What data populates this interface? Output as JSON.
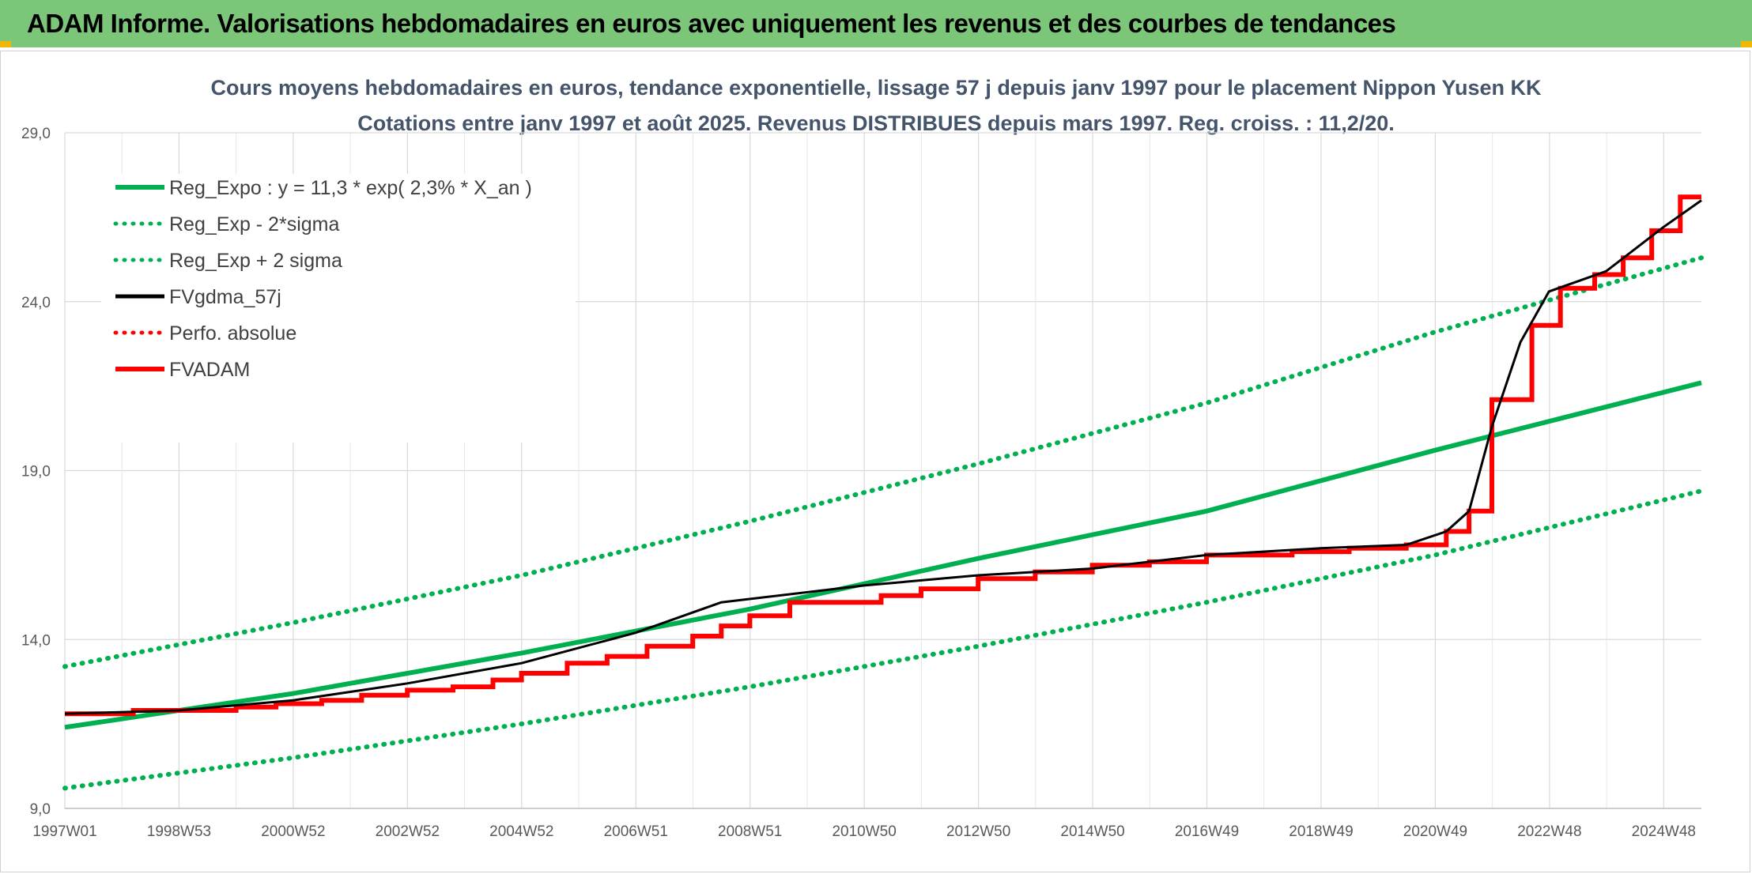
{
  "banner": {
    "title": "ADAM Informe. Valorisations hebdomadaires en euros avec uniquement les revenus et des courbes de tendances"
  },
  "colors": {
    "banner_bg": "#7cc67a",
    "regression": "#00b050",
    "fvgdma": "#000000",
    "fvadam": "#ff0000",
    "perfo": "#ff0000",
    "title": "#44546a"
  },
  "chart_data": {
    "type": "line",
    "title": [
      "Cours moyens hebdomadaires en euros, tendance exponentielle, lissage 57 j depuis janv 1997 pour le placement Nippon Yusen KK",
      "Cotations entre janv 1997 et août 2025. Revenus DISTRIBUES depuis mars 1997. Reg. croiss. : 11,2/20."
    ],
    "xlabel": "",
    "ylabel": "",
    "x_ticks": [
      "1997W01",
      "1998W53",
      "2000W52",
      "2002W52",
      "2004W52",
      "2006W51",
      "2008W51",
      "2010W50",
      "2012W50",
      "2014W50",
      "2016W49",
      "2018W49",
      "2020W49",
      "2022W48",
      "2024W48"
    ],
    "x_range": [
      1997.0,
      2025.67
    ],
    "y_ticks": [
      "9,0",
      "14,0",
      "19,0",
      "24,0",
      "29,0"
    ],
    "ylim": [
      9.0,
      29.0
    ],
    "grid": true,
    "legend_position": "top-left",
    "series": [
      {
        "name": "Reg_Expo : y = 11,3 * exp( 2,3% *  X_an )",
        "style": "solid",
        "color": "#00b050",
        "points": [
          [
            1997.0,
            11.4
          ],
          [
            2001.0,
            12.4
          ],
          [
            2005.0,
            13.6
          ],
          [
            2009.0,
            14.9
          ],
          [
            2013.0,
            16.4
          ],
          [
            2017.0,
            17.8
          ],
          [
            2021.0,
            19.6
          ],
          [
            2025.67,
            21.6
          ]
        ]
      },
      {
        "name": "Reg_Exp - 2*sigma",
        "style": "dotted",
        "color": "#00b050",
        "points": [
          [
            1997.0,
            9.6
          ],
          [
            2001.0,
            10.5
          ],
          [
            2005.0,
            11.5
          ],
          [
            2009.0,
            12.6
          ],
          [
            2013.0,
            13.8
          ],
          [
            2017.0,
            15.1
          ],
          [
            2021.0,
            16.5
          ],
          [
            2025.67,
            18.4
          ]
        ]
      },
      {
        "name": "Reg_Exp + 2 sigma",
        "style": "dotted",
        "color": "#00b050",
        "points": [
          [
            1997.0,
            13.2
          ],
          [
            2001.0,
            14.5
          ],
          [
            2005.0,
            15.9
          ],
          [
            2009.0,
            17.5
          ],
          [
            2013.0,
            19.2
          ],
          [
            2017.0,
            21.0
          ],
          [
            2021.0,
            23.1
          ],
          [
            2025.67,
            25.3
          ]
        ]
      },
      {
        "name": "FVgdma_57j",
        "style": "solid",
        "color": "#000000",
        "points": [
          [
            1997.0,
            11.8
          ],
          [
            1999.0,
            11.9
          ],
          [
            2001.0,
            12.2
          ],
          [
            2003.0,
            12.7
          ],
          [
            2005.0,
            13.3
          ],
          [
            2007.0,
            14.2
          ],
          [
            2008.5,
            15.1
          ],
          [
            2011.0,
            15.6
          ],
          [
            2013.0,
            15.9
          ],
          [
            2015.0,
            16.1
          ],
          [
            2017.0,
            16.5
          ],
          [
            2019.0,
            16.7
          ],
          [
            2020.5,
            16.8
          ],
          [
            2021.2,
            17.2
          ],
          [
            2021.6,
            17.8
          ],
          [
            2022.0,
            20.3
          ],
          [
            2022.5,
            22.8
          ],
          [
            2023.0,
            24.3
          ],
          [
            2024.0,
            24.9
          ],
          [
            2025.0,
            26.2
          ],
          [
            2025.67,
            27.0
          ]
        ]
      },
      {
        "name": "Perfo. absolue",
        "style": "dotted",
        "color": "#ff0000",
        "points": []
      },
      {
        "name": "FVADAM",
        "style": "step",
        "color": "#ff0000",
        "points": [
          [
            1997.0,
            11.8
          ],
          [
            1998.2,
            11.9
          ],
          [
            1999.2,
            11.9
          ],
          [
            2000.0,
            12.0
          ],
          [
            2000.7,
            12.1
          ],
          [
            2001.5,
            12.2
          ],
          [
            2002.2,
            12.35
          ],
          [
            2003.0,
            12.5
          ],
          [
            2003.8,
            12.6
          ],
          [
            2004.5,
            12.8
          ],
          [
            2005.0,
            13.0
          ],
          [
            2005.8,
            13.3
          ],
          [
            2006.5,
            13.5
          ],
          [
            2007.2,
            13.8
          ],
          [
            2008.0,
            14.1
          ],
          [
            2008.5,
            14.4
          ],
          [
            2009.0,
            14.7
          ],
          [
            2009.7,
            15.1
          ],
          [
            2011.3,
            15.3
          ],
          [
            2012.0,
            15.5
          ],
          [
            2013.0,
            15.8
          ],
          [
            2014.0,
            16.0
          ],
          [
            2015.0,
            16.2
          ],
          [
            2016.0,
            16.3
          ],
          [
            2017.0,
            16.5
          ],
          [
            2018.5,
            16.6
          ],
          [
            2019.5,
            16.7
          ],
          [
            2020.5,
            16.8
          ],
          [
            2021.2,
            17.2
          ],
          [
            2021.6,
            17.8
          ],
          [
            2022.0,
            21.1
          ],
          [
            2022.7,
            23.3
          ],
          [
            2023.2,
            24.4
          ],
          [
            2023.8,
            24.8
          ],
          [
            2024.3,
            25.3
          ],
          [
            2024.8,
            26.1
          ],
          [
            2025.3,
            27.1
          ],
          [
            2025.67,
            27.1
          ]
        ]
      }
    ]
  }
}
